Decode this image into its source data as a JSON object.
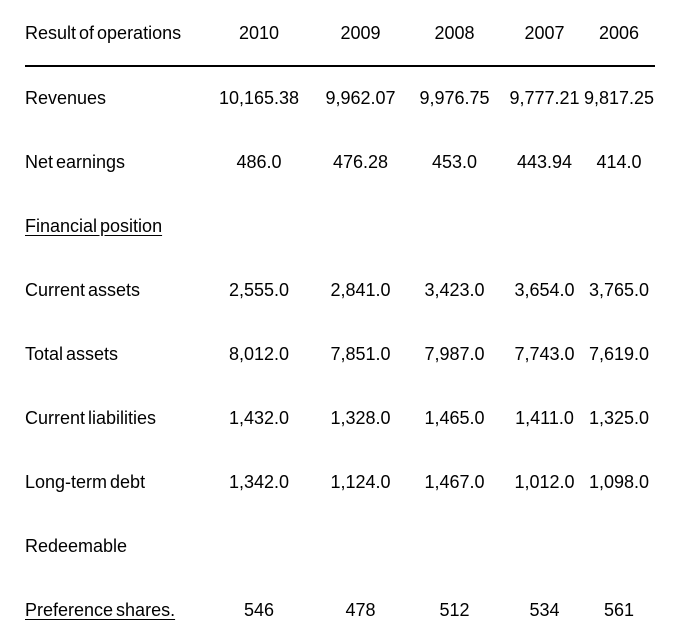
{
  "document": {
    "title": "Financial summary table",
    "colors": {
      "text": "#000000",
      "background": "#ffffff",
      "rule": "#000000"
    },
    "header": {
      "label": "Result of operations",
      "years": [
        "2010",
        "2009",
        "2008",
        "2007",
        "2006"
      ]
    },
    "rows": [
      {
        "label": "Revenues",
        "values": [
          "10,165.38",
          "9,962.07",
          "9,976.75",
          "9,777.21",
          "9,817.25"
        ]
      },
      {
        "label": "Net earnings",
        "values": [
          "486.0",
          "476.28",
          "453.0",
          "443.94",
          "414.0"
        ]
      },
      {
        "label": "Financial position",
        "values": [
          "",
          "",
          "",
          "",
          ""
        ]
      },
      {
        "label": "Current assets",
        "values": [
          "2,555.0",
          "2,841.0",
          "3,423.0",
          "3,654.0",
          "3,765.0"
        ]
      },
      {
        "label": "Total assets",
        "values": [
          "8,012.0",
          "7,851.0",
          "7,987.0",
          "7,743.0",
          "7,619.0"
        ]
      },
      {
        "label": "Current liabilities",
        "values": [
          "1,432.0",
          "1,328.0",
          "1,465.0",
          "1,411.0",
          "1,325.0"
        ]
      },
      {
        "label": "Long-term debt",
        "values": [
          "1,342.0",
          "1,124.0",
          "1,467.0",
          "1,012.0",
          "1,098.0"
        ]
      },
      {
        "label": "Redeemable",
        "values": [
          "",
          "",
          "",
          "",
          ""
        ]
      },
      {
        "label": "Preference shares.",
        "values": [
          "546",
          "478",
          "512",
          "534",
          "561"
        ]
      }
    ]
  }
}
